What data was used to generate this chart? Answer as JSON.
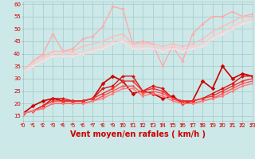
{
  "xlabel": "Vent moyen/en rafales ( km/h )",
  "xlim": [
    0,
    23
  ],
  "ylim": [
    13,
    61
  ],
  "yticks": [
    15,
    20,
    25,
    30,
    35,
    40,
    45,
    50,
    55,
    60
  ],
  "xticks": [
    0,
    1,
    2,
    3,
    4,
    5,
    6,
    7,
    8,
    9,
    10,
    11,
    12,
    13,
    14,
    15,
    16,
    17,
    18,
    19,
    20,
    21,
    22,
    23
  ],
  "bg_color": "#cce8e8",
  "grid_color": "#aacece",
  "series": [
    {
      "x": [
        0,
        1,
        2,
        3,
        4,
        5,
        6,
        7,
        8,
        9,
        10,
        11,
        12,
        13,
        14,
        15,
        16,
        17,
        18,
        19,
        20,
        21,
        22,
        23
      ],
      "y": [
        33,
        37,
        40,
        48,
        41,
        42,
        46,
        47,
        51,
        59,
        58,
        44,
        45,
        44,
        35,
        43,
        37,
        48,
        52,
        55,
        55,
        57,
        55,
        56
      ],
      "color": "#ffaaaa",
      "lw": 1.0,
      "marker": "D",
      "ms": 1.8
    },
    {
      "x": [
        0,
        1,
        2,
        3,
        4,
        5,
        6,
        7,
        8,
        9,
        10,
        11,
        12,
        13,
        14,
        15,
        16,
        17,
        18,
        19,
        20,
        21,
        22,
        23
      ],
      "y": [
        33,
        37,
        39,
        41,
        41,
        41,
        43,
        44,
        45,
        47,
        48,
        44,
        44,
        44,
        43,
        44,
        43,
        44,
        46,
        49,
        51,
        53,
        55,
        55
      ],
      "color": "#ffbbbb",
      "lw": 1.0,
      "marker": "D",
      "ms": 1.5
    },
    {
      "x": [
        0,
        1,
        2,
        3,
        4,
        5,
        6,
        7,
        8,
        9,
        10,
        11,
        12,
        13,
        14,
        15,
        16,
        17,
        18,
        19,
        20,
        21,
        22,
        23
      ],
      "y": [
        33,
        36,
        38,
        40,
        40,
        40,
        41,
        42,
        43,
        45,
        46,
        43,
        43,
        43,
        42,
        43,
        42,
        43,
        44,
        47,
        49,
        51,
        53,
        54
      ],
      "color": "#ffcccc",
      "lw": 1.0,
      "marker": "D",
      "ms": 1.5
    },
    {
      "x": [
        0,
        1,
        2,
        3,
        4,
        5,
        6,
        7,
        8,
        9,
        10,
        11,
        12,
        13,
        14,
        15,
        16,
        17,
        18,
        19,
        20,
        21,
        22,
        23
      ],
      "y": [
        33,
        35,
        37,
        39,
        39,
        39,
        40,
        41,
        42,
        44,
        45,
        42,
        42,
        42,
        41,
        42,
        41,
        42,
        43,
        46,
        48,
        50,
        52,
        53
      ],
      "color": "#ffdddd",
      "lw": 1.0,
      "marker": "D",
      "ms": 1.5
    },
    {
      "x": [
        0,
        1,
        2,
        3,
        4,
        5,
        6,
        7,
        8,
        9,
        10,
        11,
        12,
        13,
        14,
        15,
        16,
        17,
        18,
        19,
        20,
        21,
        22,
        23
      ],
      "y": [
        16,
        19,
        21,
        22,
        21,
        21,
        21,
        22,
        28,
        31,
        29,
        24,
        25,
        24,
        22,
        23,
        20,
        21,
        29,
        26,
        35,
        30,
        32,
        31
      ],
      "color": "#cc0000",
      "lw": 1.2,
      "marker": "D",
      "ms": 2.5
    },
    {
      "x": [
        0,
        1,
        2,
        3,
        4,
        5,
        6,
        7,
        8,
        9,
        10,
        11,
        12,
        13,
        14,
        15,
        16,
        17,
        18,
        19,
        20,
        21,
        22,
        23
      ],
      "y": [
        16,
        17,
        19,
        22,
        22,
        21,
        21,
        22,
        26,
        27,
        31,
        31,
        25,
        27,
        26,
        22,
        21,
        21,
        22,
        24,
        26,
        28,
        31,
        31
      ],
      "color": "#dd1111",
      "lw": 1.0,
      "marker": "D",
      "ms": 2.0
    },
    {
      "x": [
        0,
        1,
        2,
        3,
        4,
        5,
        6,
        7,
        8,
        9,
        10,
        11,
        12,
        13,
        14,
        15,
        16,
        17,
        18,
        19,
        20,
        21,
        22,
        23
      ],
      "y": [
        16,
        17,
        19,
        21,
        21,
        21,
        21,
        22,
        24,
        26,
        29,
        29,
        25,
        26,
        25,
        22,
        21,
        21,
        22,
        23,
        25,
        27,
        29,
        30
      ],
      "color": "#ee3333",
      "lw": 1.0,
      "marker": "D",
      "ms": 1.8
    },
    {
      "x": [
        0,
        1,
        2,
        3,
        4,
        5,
        6,
        7,
        8,
        9,
        10,
        11,
        12,
        13,
        14,
        15,
        16,
        17,
        18,
        19,
        20,
        21,
        22,
        23
      ],
      "y": [
        16,
        17,
        18,
        20,
        20,
        20,
        20,
        21,
        23,
        25,
        27,
        27,
        24,
        25,
        24,
        22,
        20,
        20,
        21,
        22,
        24,
        26,
        28,
        29
      ],
      "color": "#ff5555",
      "lw": 1.0,
      "marker": "D",
      "ms": 1.5
    },
    {
      "x": [
        0,
        1,
        2,
        3,
        4,
        5,
        6,
        7,
        8,
        9,
        10,
        11,
        12,
        13,
        14,
        15,
        16,
        17,
        18,
        19,
        20,
        21,
        22,
        23
      ],
      "y": [
        16,
        17,
        18,
        20,
        20,
        20,
        20,
        21,
        22,
        24,
        26,
        26,
        23,
        24,
        23,
        21,
        20,
        20,
        21,
        22,
        23,
        25,
        27,
        28
      ],
      "color": "#ff7777",
      "lw": 1.0,
      "marker": "D",
      "ms": 1.5
    }
  ],
  "arrow_color": "#dd3333",
  "font_color": "#cc0000",
  "tick_fontsize": 5,
  "label_fontsize": 7
}
